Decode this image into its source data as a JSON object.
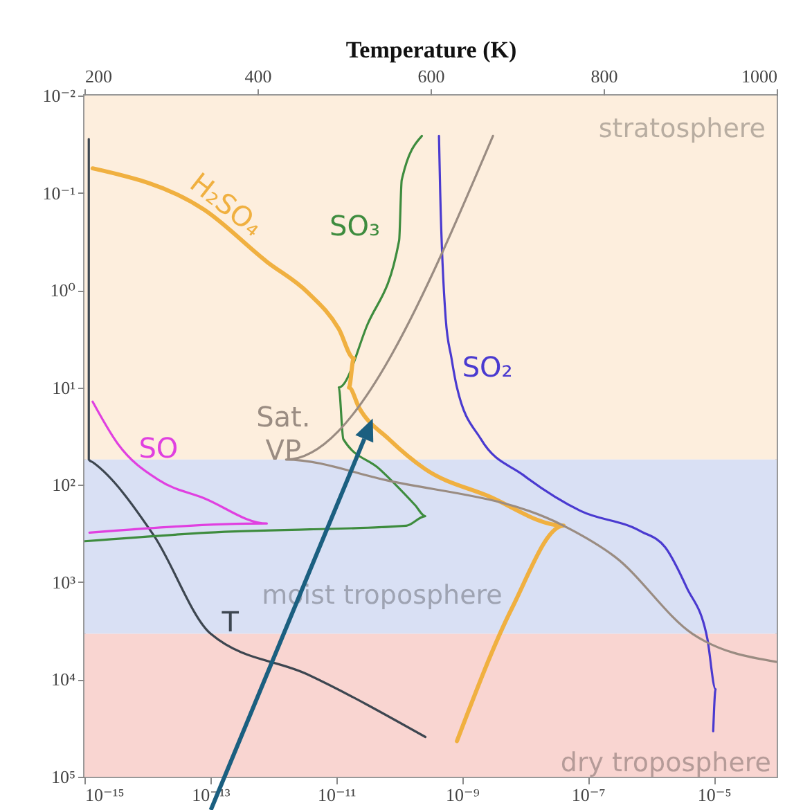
{
  "chart_data": {
    "type": "line",
    "x2label": "Temperature (K)",
    "xlim": [
      1e-15,
      0.0001
    ],
    "xticks": [
      {
        "value": 1e-15,
        "label": "10⁻¹⁵"
      },
      {
        "value": 1e-13,
        "label": "10⁻¹³"
      },
      {
        "value": 1e-11,
        "label": "10⁻¹¹"
      },
      {
        "value": 1e-09,
        "label": "10⁻⁹"
      },
      {
        "value": 1e-07,
        "label": "10⁻⁷"
      },
      {
        "value": 1e-05,
        "label": "10⁻⁵"
      }
    ],
    "x2lim": [
      200,
      1000
    ],
    "x2ticks": [
      200,
      400,
      600,
      800,
      1000
    ],
    "ylim": [
      100000,
      0.01
    ],
    "yticks": [
      {
        "value": 0.01,
        "label": "10⁻²"
      },
      {
        "value": 0.1,
        "label": "10⁻¹"
      },
      {
        "value": 1,
        "label": "10⁰"
      },
      {
        "value": 10,
        "label": "10¹"
      },
      {
        "value": 100,
        "label": "10²"
      },
      {
        "value": 1000,
        "label": "10³"
      },
      {
        "value": 10000,
        "label": "10⁴"
      },
      {
        "value": 100000,
        "label": "10⁵"
      }
    ],
    "log": "xy",
    "grid": false,
    "bands": [
      {
        "axis": "y",
        "from": 0.01,
        "to": 55,
        "label": "stratosphere",
        "color": "#fdeedd"
      },
      {
        "axis": "y",
        "from": 55,
        "to": 3400,
        "label": "moist troposphere",
        "color": "#d9e0f4"
      },
      {
        "axis": "y",
        "from": 3400,
        "to": 100000,
        "label": "dry troposphere",
        "color": "#f9d5d1"
      }
    ],
    "series": [
      {
        "name": "T",
        "color": "#3d4650",
        "axis": "x2",
        "x": [
          205,
          205,
          210,
          280,
          346,
          458,
          594
        ],
        "values": [
          0.028,
          55,
          59,
          330,
          3400,
          8900,
          39000
        ]
      },
      {
        "name": "SO",
        "color": "#e040e0",
        "x": [
          1.35e-15,
          3.4e-15,
          1.5e-14,
          8.1e-14,
          7.9e-13,
          1.2e-15
        ],
        "values": [
          14,
          38,
          89,
          138,
          250,
          310
        ]
      },
      {
        "name": "SO₃",
        "color": "#3e8c3e",
        "x": [
          2.3e-10,
          1.1e-10,
          1e-10,
          3.1e-11,
          1.1e-11,
          1.3e-11,
          4.9e-11,
          1.8e-10,
          2.6e-10,
          1.3e-10,
          9e-14,
          1e-15
        ],
        "values": [
          0.026,
          0.074,
          0.31,
          2.3,
          10,
          34,
          69,
          162,
          210,
          263,
          310,
          380
        ]
      },
      {
        "name": "SO₂",
        "color": "#4a3ad0",
        "x": [
          4.3e-10,
          4.5e-10,
          5.5e-10,
          6.8e-10,
          8.3e-10,
          2e-09,
          9.3e-09,
          7.6e-08,
          6.9e-07,
          1.7e-06,
          3.7e-06,
          7.9e-06,
          1.07e-05,
          9.8e-06
        ],
        "values": [
          0.026,
          0.1,
          1.96,
          5,
          10,
          34,
          79,
          185,
          300,
          440,
          1130,
          3800,
          12600,
          34000
        ]
      },
      {
        "name": "H₂SO₄",
        "color": "#f0b040",
        "x": [
          1.35e-15,
          8.1e-14,
          7.9e-13,
          3.5e-12,
          1.1e-11,
          1.9e-11,
          1.6e-11,
          2.3e-11,
          6.9e-11,
          2.6e-10,
          2.5e-09,
          4.1e-08,
          6.3e-09,
          8.3e-10
        ],
        "values": [
          0.056,
          0.15,
          0.51,
          1.05,
          2.5,
          5,
          10,
          16,
          34,
          69,
          129,
          263,
          1820,
          43000
        ]
      },
      {
        "name": "Sat. VP",
        "color": "#9a8c82",
        "x": [
          3.1e-09,
          1.6e-12,
          5.9e-11,
          4.1e-08,
          2.7e-07,
          4.6e-06,
          0.0001
        ],
        "values": [
          0.026,
          55,
          89,
          263,
          550,
          3400,
          6600
        ]
      }
    ]
  }
}
